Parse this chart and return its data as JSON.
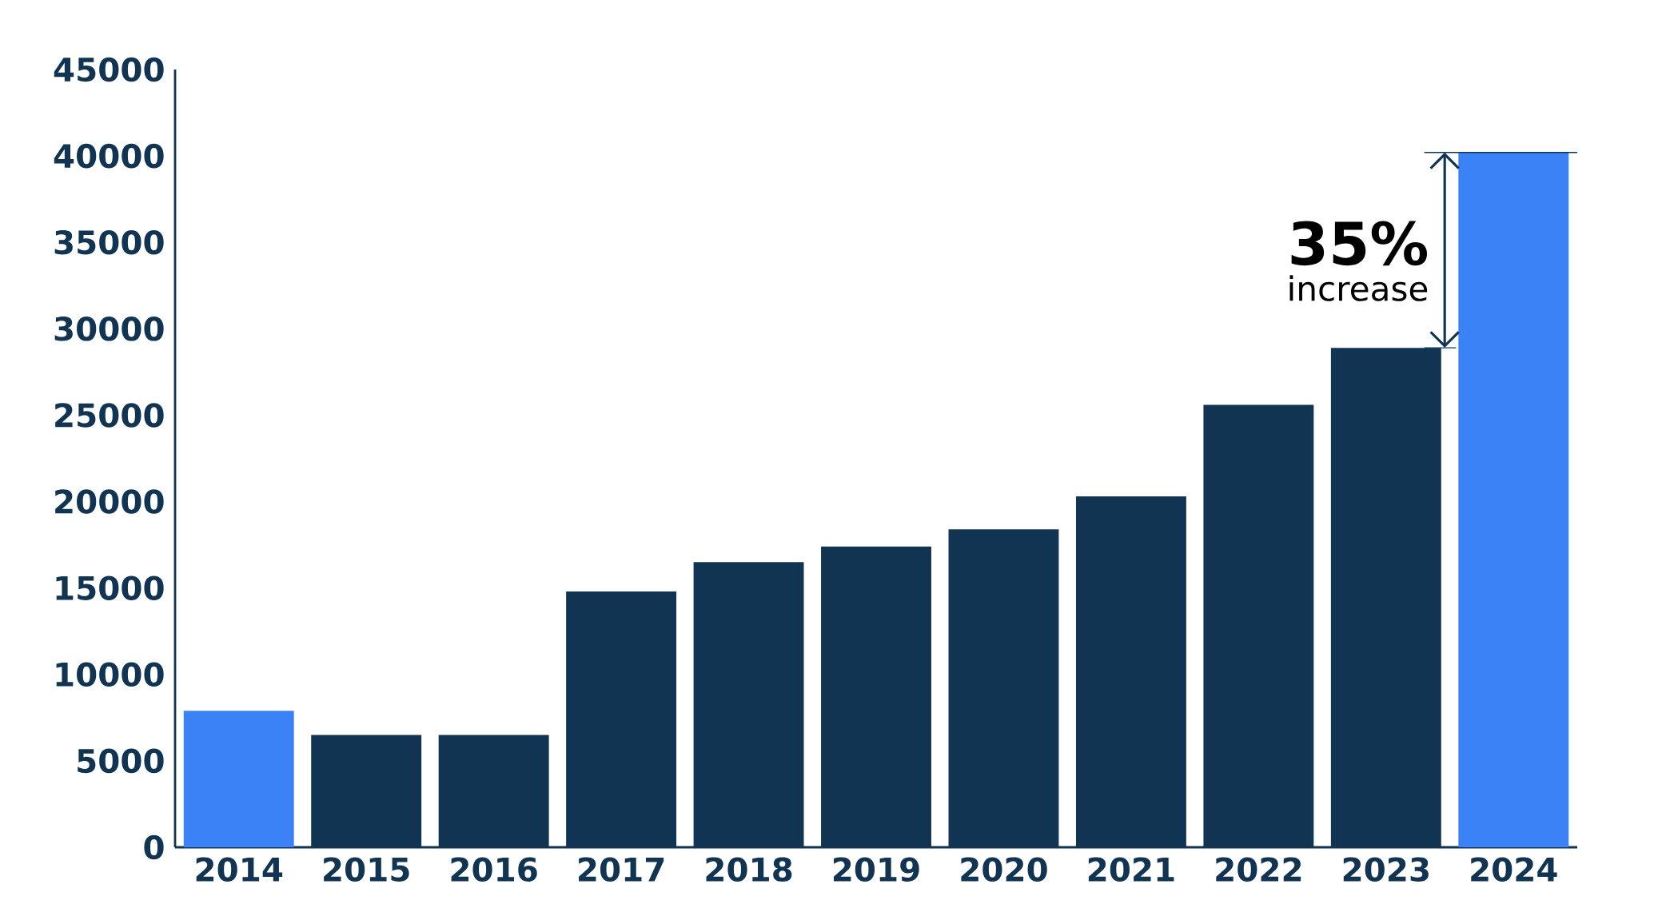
{
  "chart_data": {
    "type": "bar",
    "categories": [
      "2014",
      "2015",
      "2016",
      "2017",
      "2018",
      "2019",
      "2020",
      "2021",
      "2022",
      "2023",
      "2024"
    ],
    "values": [
      7900,
      6500,
      6500,
      14800,
      16500,
      17400,
      18400,
      20300,
      25600,
      28900,
      40200
    ],
    "colors": [
      "#3b82f6",
      "#113453",
      "#113453",
      "#113453",
      "#113453",
      "#113453",
      "#113453",
      "#113453",
      "#113453",
      "#113453",
      "#3b82f6"
    ],
    "ylim": [
      0,
      45000
    ],
    "yticks": [
      0,
      5000,
      10000,
      15000,
      20000,
      25000,
      30000,
      35000,
      40000,
      45000
    ],
    "grid": false,
    "annotations": [
      "35%",
      "increase"
    ]
  }
}
